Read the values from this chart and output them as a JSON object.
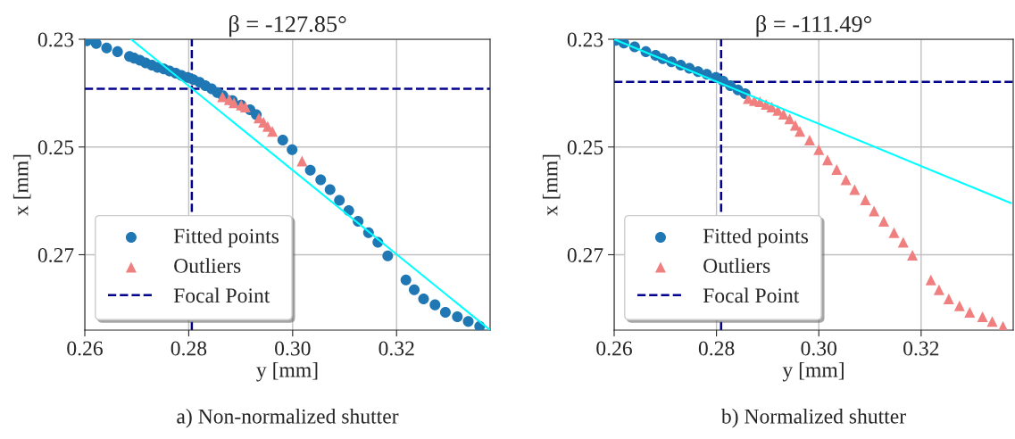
{
  "chart_data": [
    {
      "type": "scatter",
      "title": "β = -127.85°",
      "xlabel": "y [mm]",
      "ylabel": "x [mm]",
      "xlim": [
        0.26,
        0.338
      ],
      "ylim": [
        0.284,
        0.23
      ],
      "xticks": [
        0.26,
        0.28,
        {
          "value": 0.3,
          "label": "0.30"
        },
        0.32
      ],
      "yticks": [
        0.23,
        0.25,
        0.27
      ],
      "grid": true,
      "legend": "bottom left",
      "series": [
        {
          "name": "Fitted points",
          "marker": "circle",
          "color": "#1f77b4",
          "x": [
            0.2604,
            0.2622,
            0.2642,
            0.2663,
            0.2686,
            0.2695,
            0.2706,
            0.2717,
            0.2729,
            0.274,
            0.2752,
            0.2763,
            0.2775,
            0.2786,
            0.2798,
            0.2809,
            0.2821,
            0.2832,
            0.2844,
            0.2855,
            0.2866,
            0.2884,
            0.2901,
            0.2918,
            0.293,
            0.2981,
            0.2999,
            0.3034,
            0.3054,
            0.3072,
            0.309,
            0.3108,
            0.3126,
            0.3146,
            0.3164,
            0.3183,
            0.3218,
            0.3234,
            0.3252,
            0.3274,
            0.3294,
            0.3317,
            0.3338,
            0.336
          ],
          "values": [
            0.2303,
            0.2308,
            0.2316,
            0.2323,
            0.2332,
            0.2335,
            0.2339,
            0.2344,
            0.2348,
            0.2352,
            0.2355,
            0.2359,
            0.2363,
            0.2367,
            0.2371,
            0.2375,
            0.238,
            0.2386,
            0.2392,
            0.2399,
            0.2405,
            0.2414,
            0.2422,
            0.2431,
            0.244,
            0.2487,
            0.2505,
            0.2543,
            0.2561,
            0.2579,
            0.2599,
            0.2618,
            0.2638,
            0.2659,
            0.2677,
            0.2702,
            0.2747,
            0.2765,
            0.2782,
            0.2793,
            0.2807,
            0.2815,
            0.2824,
            0.2833
          ]
        },
        {
          "name": "Outliers",
          "marker": "triangle",
          "color": "#f08080",
          "x": [
            0.2865,
            0.2878,
            0.2887,
            0.2901,
            0.2909,
            0.2935,
            0.2944,
            0.2952,
            0.2961,
            0.3018
          ],
          "values": [
            0.2407,
            0.2412,
            0.2418,
            0.2422,
            0.2426,
            0.2446,
            0.2454,
            0.2462,
            0.2471,
            0.2526
          ]
        },
        {
          "type": "line",
          "color": "#00ffff",
          "x": [
            0.2689,
            0.3379
          ],
          "values": [
            0.23,
            0.2839
          ]
        }
      ],
      "ref_lines": [
        {
          "axis": "x",
          "value": 0.2806,
          "label": "Focal Point",
          "color": "#00008b",
          "line_style": "dashed"
        },
        {
          "axis": "y",
          "value": 0.2392,
          "color": "#00008b",
          "line_style": "dashed"
        }
      ],
      "annotations": [
        "a) Non-normalized shutter"
      ]
    },
    {
      "type": "scatter",
      "title": "β = -111.49°",
      "xlabel": "y [mm]",
      "ylabel": "x [mm]",
      "xlim": [
        0.26,
        0.338
      ],
      "ylim": [
        0.284,
        0.23
      ],
      "xticks": [
        0.26,
        0.28,
        {
          "value": 0.3,
          "label": "0.30"
        },
        0.32
      ],
      "yticks": [
        0.23,
        0.25,
        0.27
      ],
      "grid": true,
      "legend": "bottom left",
      "series": [
        {
          "name": "Fitted points",
          "marker": "circle",
          "color": "#1f77b4",
          "x": [
            0.2603,
            0.2619,
            0.264,
            0.2662,
            0.2681,
            0.2695,
            0.2712,
            0.273,
            0.2747,
            0.2764,
            0.2781,
            0.2799,
            0.2813,
            0.2827,
            0.2842,
            0.2856
          ],
          "values": [
            0.2302,
            0.2307,
            0.2314,
            0.2323,
            0.233,
            0.2336,
            0.2342,
            0.2348,
            0.2354,
            0.236,
            0.2365,
            0.2371,
            0.2378,
            0.2386,
            0.2394,
            0.2401
          ]
        },
        {
          "name": "Outliers",
          "marker": "triangle",
          "color": "#f08080",
          "x": [
            0.2862,
            0.2874,
            0.2885,
            0.2897,
            0.2908,
            0.292,
            0.2931,
            0.2943,
            0.2954,
            0.2963,
            0.2982,
            0.3,
            0.3017,
            0.3035,
            0.3053,
            0.307,
            0.3091,
            0.3108,
            0.3127,
            0.3147,
            0.3165,
            0.3183,
            0.3219,
            0.3235,
            0.3254,
            0.3275,
            0.3295,
            0.332,
            0.3339,
            0.336
          ],
          "values": [
            0.241,
            0.2414,
            0.2416,
            0.2421,
            0.2426,
            0.2432,
            0.2439,
            0.2448,
            0.246,
            0.2471,
            0.2487,
            0.2505,
            0.2524,
            0.2542,
            0.2561,
            0.2579,
            0.2598,
            0.2619,
            0.2638,
            0.2659,
            0.2677,
            0.2701,
            0.2747,
            0.2765,
            0.2782,
            0.2795,
            0.2807,
            0.2815,
            0.2824,
            0.2833
          ]
        },
        {
          "type": "line",
          "color": "#00ffff",
          "x": [
            0.26,
            0.3375
          ],
          "values": [
            0.23,
            0.2604
          ]
        }
      ],
      "ref_lines": [
        {
          "axis": "x",
          "value": 0.2809,
          "label": "Focal Point",
          "color": "#00008b",
          "line_style": "dashed"
        },
        {
          "axis": "y",
          "value": 0.2379,
          "color": "#00008b",
          "line_style": "dashed"
        }
      ],
      "annotations": [
        "b) Normalized shutter"
      ]
    }
  ]
}
